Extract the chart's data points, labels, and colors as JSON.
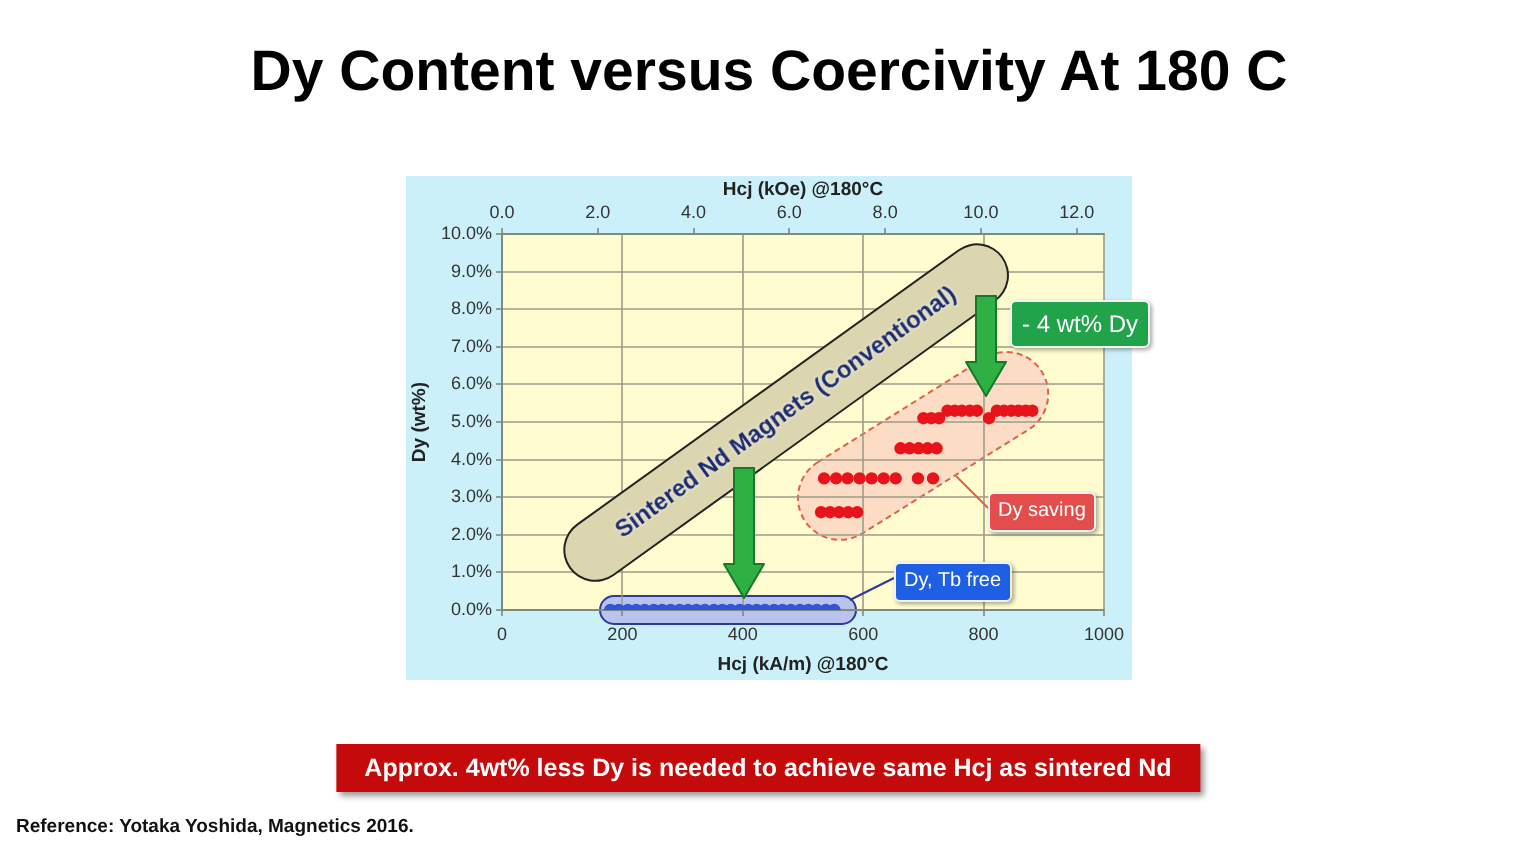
{
  "chart_data": {
    "type": "scatter",
    "title": "Dy Content versus Coercivity At 180 C",
    "xlabel": "Hcj (kA/m) @180°C",
    "x2label": "Hcj (kOe) @180°C",
    "ylabel": "Dy (wt%)",
    "xlim": [
      0,
      1000
    ],
    "xticks": [
      0,
      200,
      400,
      600,
      800,
      1000
    ],
    "x2lim": [
      0,
      12.57
    ],
    "x2ticks": [
      {
        "value": 0,
        "label": "0.0"
      },
      {
        "value": 2,
        "label": "2.0"
      },
      {
        "value": 4,
        "label": "4.0"
      },
      {
        "value": 6,
        "label": "6.0"
      },
      {
        "value": 8,
        "label": "8.0"
      },
      {
        "value": 10,
        "label": "10.0"
      },
      {
        "value": 12,
        "label": "12.0"
      }
    ],
    "ylim": [
      0,
      10
    ],
    "yticks": [
      {
        "value": 0,
        "label": "0.0%"
      },
      {
        "value": 1,
        "label": "1.0%"
      },
      {
        "value": 2,
        "label": "2.0%"
      },
      {
        "value": 3,
        "label": "3.0%"
      },
      {
        "value": 4,
        "label": "4.0%"
      },
      {
        "value": 5,
        "label": "5.0%"
      },
      {
        "value": 6,
        "label": "6.0%"
      },
      {
        "value": 7,
        "label": "7.0%"
      },
      {
        "value": 8,
        "label": "8.0%"
      },
      {
        "value": 9,
        "label": "9.0%"
      },
      {
        "value": 10,
        "label": "10.0%"
      }
    ],
    "grid": true,
    "marker": "circle",
    "series": [
      {
        "color": "#e8131b",
        "x": [
          530,
          545,
          560,
          575,
          590,
          535,
          555,
          574,
          594,
          614,
          634,
          654,
          691,
          716,
          662,
          677,
          692,
          707,
          722,
          700,
          713,
          726,
          740,
          752,
          764,
          777,
          789,
          809,
          822,
          834,
          846,
          858,
          870,
          881
        ],
        "values": [
          2.6,
          2.6,
          2.6,
          2.6,
          2.6,
          3.5,
          3.5,
          3.5,
          3.5,
          3.5,
          3.5,
          3.5,
          3.5,
          3.5,
          4.3,
          4.3,
          4.3,
          4.3,
          4.3,
          5.1,
          5.1,
          5.1,
          5.3,
          5.3,
          5.3,
          5.3,
          5.3,
          5.1,
          5.3,
          5.3,
          5.3,
          5.3,
          5.3,
          5.3
        ]
      },
      {
        "color": "#3355d6",
        "x": [
          180,
          194,
          209,
          223,
          237,
          252,
          266,
          280,
          295,
          309,
          323,
          337,
          352,
          366,
          380,
          395,
          409,
          423,
          437,
          452,
          466,
          480,
          495,
          509,
          523,
          538,
          552
        ],
        "values": [
          0,
          0,
          0,
          0,
          0,
          0,
          0,
          0,
          0,
          0,
          0,
          0,
          0,
          0,
          0,
          0,
          0,
          0,
          0,
          0,
          0,
          0,
          0,
          0,
          0,
          0,
          0
        ]
      },
      {
        "type": "line",
        "name": "Sintered Nd Magnets (Conventional)",
        "color": "#dcd6b0",
        "marker": "none",
        "x": [
          155,
          789
        ],
        "values": [
          1.6,
          8.9
        ]
      }
    ],
    "annotations": [
      "- 4 wt% Dy",
      "Dy saving",
      "Dy, Tb free",
      "Approx. 4wt% less Dy is needed to achieve same Hcj as sintered Nd",
      "Reference: Yotaka Yoshida, Magnetics 2016."
    ]
  }
}
